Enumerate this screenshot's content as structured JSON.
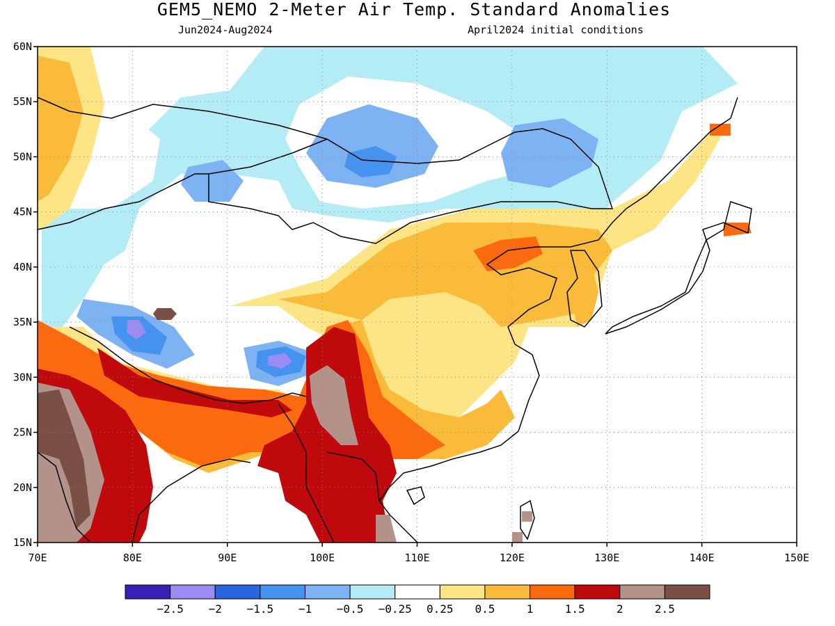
{
  "header": {
    "title": "GEM5_NEMO 2-Meter Air Temp. Standard Anomalies",
    "period": "Jun2024-Aug2024",
    "initial_conditions": "April2024 initial conditions"
  },
  "map": {
    "lon_range": [
      70,
      150
    ],
    "lat_range": [
      15,
      60
    ],
    "x_ticks": [
      "70E",
      "80E",
      "90E",
      "100E",
      "110E",
      "120E",
      "130E",
      "140E",
      "150E"
    ],
    "y_ticks": [
      "60N",
      "55N",
      "50N",
      "45N",
      "40N",
      "35N",
      "30N",
      "25N",
      "20N",
      "15N"
    ],
    "grid": "dotted"
  },
  "colorbar": {
    "colors": [
      "#3a1fb4",
      "#9b8cf2",
      "#2a66dd",
      "#4592ef",
      "#7db3f2",
      "#b4ecf6",
      "#ffffff",
      "#fde586",
      "#fbbb3a",
      "#fb6a0f",
      "#c0090c",
      "#b39289",
      "#7a5044"
    ],
    "labels": [
      "−2.5",
      "−2",
      "−1.5",
      "−1",
      "−0.5",
      "−0.25",
      "0.25",
      "0.5",
      "1",
      "1.5",
      "2",
      "2.5"
    ]
  }
}
